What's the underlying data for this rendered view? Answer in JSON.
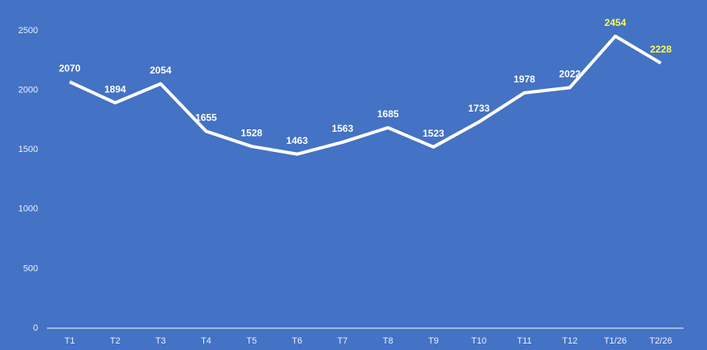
{
  "chart_data": {
    "type": "line",
    "categories": [
      "T1",
      "T2",
      "T3",
      "T4",
      "T5",
      "T6",
      "T7",
      "T8",
      "T9",
      "T10",
      "T11",
      "T12",
      "T1/26",
      "T2/26"
    ],
    "series": [
      {
        "color": "#ffffff",
        "values": [
          2070,
          1894,
          2054,
          1655,
          1528,
          1463,
          1563,
          1685,
          1523,
          1733,
          1978,
          2022,
          2454,
          2228
        ]
      }
    ],
    "value_label_colors": [
      "#ffffff",
      "#ffffff",
      "#ffffff",
      "#ffffff",
      "#ffffff",
      "#ffffff",
      "#ffffff",
      "#ffffff",
      "#ffffff",
      "#ffffff",
      "#ffffff",
      "#ffffff",
      "#ffff4d",
      "#ffff4d"
    ],
    "background": "#4472c4",
    "ylim": [
      0,
      2500
    ],
    "yticks": [
      0,
      500,
      1000,
      1500,
      2000,
      2500
    ],
    "grid": false,
    "drop_lines": true
  }
}
